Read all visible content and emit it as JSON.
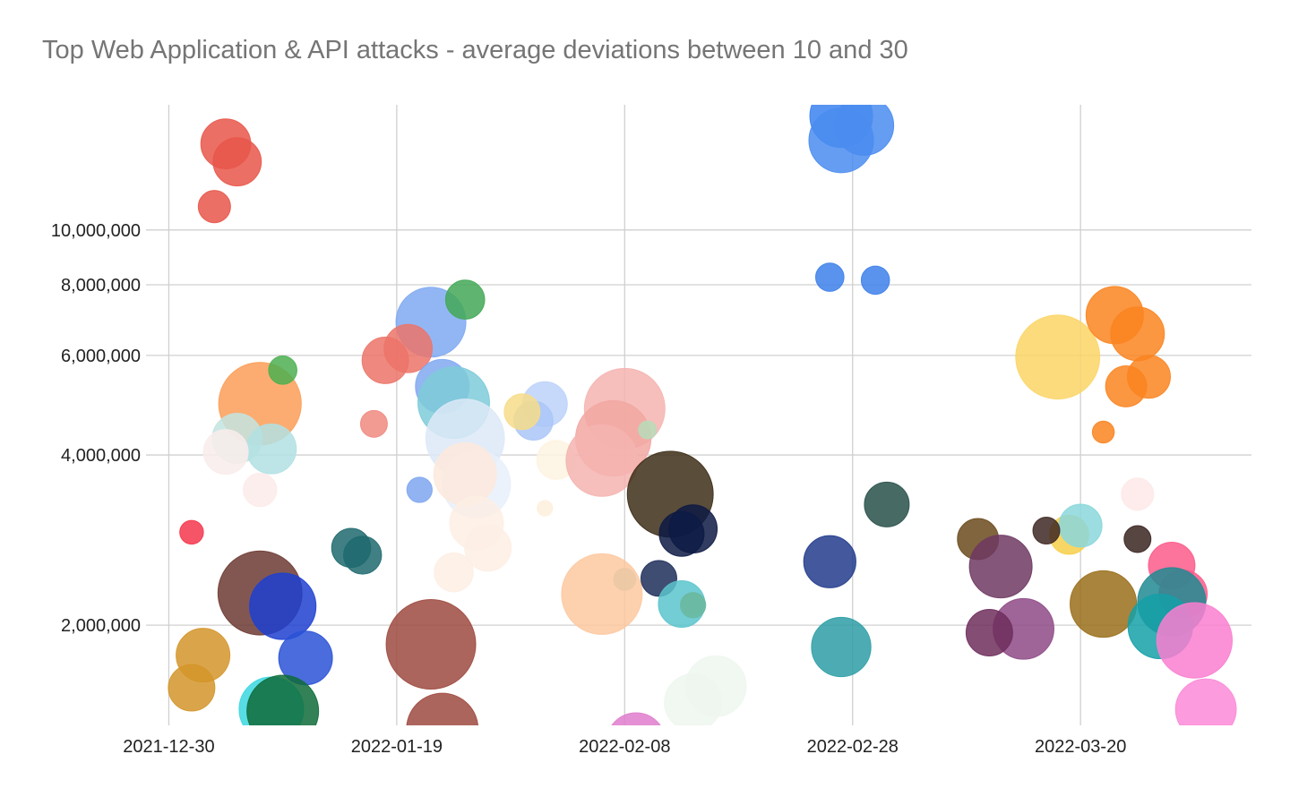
{
  "chart_data": {
    "type": "bubble",
    "title": "Top Web Application & API attacks - average deviations between 10 and 30",
    "xlabel": "",
    "ylabel": "",
    "x_scale": "date",
    "y_scale": "log",
    "xlim": [
      "2021-12-28",
      "2022-04-04"
    ],
    "ylim": [
      1330000,
      16650000
    ],
    "grid": true,
    "legend": "none",
    "x_ticks": [
      "2021-12-30",
      "2022-01-19",
      "2022-02-08",
      "2022-02-28",
      "2022-03-20"
    ],
    "y_ticks": [
      {
        "value": 2000000,
        "label": "2,000,000"
      },
      {
        "value": 4000000,
        "label": "4,000,000"
      },
      {
        "value": 6000000,
        "label": "6,000,000"
      },
      {
        "value": 8000000,
        "label": "8,000,000"
      },
      {
        "value": 10000000,
        "label": "10,000,000"
      }
    ],
    "points": [
      {
        "date": "2022-01-04",
        "value": 14200000,
        "size": 31,
        "color": "#e8564a"
      },
      {
        "date": "2022-01-05",
        "value": 13200000,
        "size": 29,
        "color": "#e8564a"
      },
      {
        "date": "2022-01-03",
        "value": 11000000,
        "size": 13,
        "color": "#e8564a"
      },
      {
        "date": "2022-01-07",
        "value": 4930000,
        "size": 85,
        "color": "#fb9e58"
      },
      {
        "date": "2022-01-09",
        "value": 5650000,
        "size": 10,
        "color": "#4caf50"
      },
      {
        "date": "2022-01-05",
        "value": 4280000,
        "size": 31,
        "color": "#c3e4e0"
      },
      {
        "date": "2022-01-08",
        "value": 4100000,
        "size": 31,
        "color": "#b2e0e3"
      },
      {
        "date": "2022-01-04",
        "value": 4050000,
        "size": 25,
        "color": "#f8eceb"
      },
      {
        "date": "2022-01-07",
        "value": 3470000,
        "size": 14,
        "color": "#fcebea"
      },
      {
        "date": "2022-01-01",
        "value": 2920000,
        "size": 7,
        "color": "#f4364c"
      },
      {
        "date": "2022-01-07",
        "value": 2280000,
        "size": 88,
        "color": "#6d3a33"
      },
      {
        "date": "2022-01-09",
        "value": 2160000,
        "size": 55,
        "color": "#1e40d0"
      },
      {
        "date": "2022-01-11",
        "value": 1750000,
        "size": 36,
        "color": "#2a52d6"
      },
      {
        "date": "2022-01-02",
        "value": 1770000,
        "size": 36,
        "color": "#d4952a"
      },
      {
        "date": "2022-01-01",
        "value": 1550000,
        "size": 27,
        "color": "#d4952a"
      },
      {
        "date": "2022-01-08",
        "value": 1420000,
        "size": 52,
        "color": "#3bd7e0"
      },
      {
        "date": "2022-01-09",
        "value": 1410000,
        "size": 64,
        "color": "#0f6b3a"
      },
      {
        "date": "2022-01-15",
        "value": 2740000,
        "size": 19,
        "color": "#1f6a6e"
      },
      {
        "date": "2022-01-16",
        "value": 2660000,
        "size": 18,
        "color": "#1f6a6e"
      },
      {
        "date": "2022-01-17",
        "value": 4540000,
        "size": 9,
        "color": "#ee8a80"
      },
      {
        "date": "2022-01-22",
        "value": 6870000,
        "size": 61,
        "color": "#7fa9f2"
      },
      {
        "date": "2022-01-25",
        "value": 7530000,
        "size": 19,
        "color": "#43a856"
      },
      {
        "date": "2022-01-18",
        "value": 5880000,
        "size": 27,
        "color": "#ec7468"
      },
      {
        "date": "2022-01-20",
        "value": 6170000,
        "size": 29,
        "color": "#ec7468"
      },
      {
        "date": "2022-01-23",
        "value": 5290000,
        "size": 36,
        "color": "#80a8f0"
      },
      {
        "date": "2022-01-24",
        "value": 4950000,
        "size": 64,
        "color": "#7ecbd9"
      },
      {
        "date": "2022-01-25",
        "value": 4280000,
        "size": 77,
        "color": "#dde9f7"
      },
      {
        "date": "2022-01-26",
        "value": 3550000,
        "size": 58,
        "color": "#e8f0fb"
      },
      {
        "date": "2022-01-25",
        "value": 3700000,
        "size": 49,
        "color": "#fde9dc"
      },
      {
        "date": "2022-01-26",
        "value": 3030000,
        "size": 36,
        "color": "#fdeee4"
      },
      {
        "date": "2022-01-27",
        "value": 2740000,
        "size": 27,
        "color": "#fdeee4"
      },
      {
        "date": "2022-01-24",
        "value": 2480000,
        "size": 19,
        "color": "#fdeee4"
      },
      {
        "date": "2022-01-21",
        "value": 3470000,
        "size": 8,
        "color": "#7fa6f0"
      },
      {
        "date": "2022-01-22",
        "value": 1850000,
        "size": 100,
        "color": "#9e4a40"
      },
      {
        "date": "2022-01-23",
        "value": 1310000,
        "size": 64,
        "color": "#9e4a40"
      },
      {
        "date": "2022-02-01",
        "value": 4920000,
        "size": 25,
        "color": "#bcd2fa"
      },
      {
        "date": "2022-01-31",
        "value": 4600000,
        "size": 19,
        "color": "#aac6f7"
      },
      {
        "date": "2022-01-30",
        "value": 4770000,
        "size": 16,
        "color": "#f6dc8a"
      },
      {
        "date": "2022-02-02",
        "value": 3920000,
        "size": 19,
        "color": "#fdf3e0"
      },
      {
        "date": "2022-02-01",
        "value": 3220000,
        "size": 3,
        "color": "#fdf0dc"
      },
      {
        "date": "2022-02-08",
        "value": 4830000,
        "size": 81,
        "color": "#f4b4b0"
      },
      {
        "date": "2022-02-07",
        "value": 4280000,
        "size": 71,
        "color": "#f2a7a2"
      },
      {
        "date": "2022-02-06",
        "value": 3910000,
        "size": 64,
        "color": "#f4b4b0"
      },
      {
        "date": "2022-02-10",
        "value": 4430000,
        "size": 4,
        "color": "#b7dcb9"
      },
      {
        "date": "2022-02-06",
        "value": 2270000,
        "size": 81,
        "color": "#fdc8a0"
      },
      {
        "date": "2022-02-08",
        "value": 2410000,
        "size": 6,
        "color": "#ebc8a5"
      },
      {
        "date": "2022-02-12",
        "value": 3410000,
        "size": 92,
        "color": "#3d2e18"
      },
      {
        "date": "2022-02-14",
        "value": 2960000,
        "size": 29,
        "color": "#0d1a44"
      },
      {
        "date": "2022-02-13",
        "value": 2900000,
        "size": 25,
        "color": "#0d1a44"
      },
      {
        "date": "2022-02-11",
        "value": 2420000,
        "size": 16,
        "color": "#1f2e5a"
      },
      {
        "date": "2022-02-14",
        "value": 2180000,
        "size": 6,
        "color": "#f1c232"
      },
      {
        "date": "2022-02-13",
        "value": 2180000,
        "size": 27,
        "color": "#5ac4cc"
      },
      {
        "date": "2022-02-14",
        "value": 2170000,
        "size": 8,
        "color": "#6ab8a0"
      },
      {
        "date": "2022-02-09",
        "value": 1240000,
        "size": 44,
        "color": "#e07ccd"
      },
      {
        "date": "2022-02-16",
        "value": 1560000,
        "size": 46,
        "color": "#eef6ef"
      },
      {
        "date": "2022-02-14",
        "value": 1460000,
        "size": 41,
        "color": "#eef6ef"
      },
      {
        "date": "2022-02-27",
        "value": 15900000,
        "size": 49,
        "color": "#3b82f0"
      },
      {
        "date": "2022-03-01",
        "value": 15300000,
        "size": 44,
        "color": "#4a8cf0"
      },
      {
        "date": "2022-02-27",
        "value": 14400000,
        "size": 52,
        "color": "#4a8cf0"
      },
      {
        "date": "2022-02-26",
        "value": 8250000,
        "size": 10,
        "color": "#3d80ea"
      },
      {
        "date": "2022-03-02",
        "value": 8150000,
        "size": 10,
        "color": "#3d80ea"
      },
      {
        "date": "2022-03-03",
        "value": 3270000,
        "size": 25,
        "color": "#28504a"
      },
      {
        "date": "2022-02-26",
        "value": 2590000,
        "size": 34,
        "color": "#223b8c"
      },
      {
        "date": "2022-02-27",
        "value": 1830000,
        "size": 44,
        "color": "#2e9ea6"
      },
      {
        "date": "2022-03-11",
        "value": 2840000,
        "size": 21,
        "color": "#6a4a1c"
      },
      {
        "date": "2022-03-13",
        "value": 2540000,
        "size": 49,
        "color": "#6e3862"
      },
      {
        "date": "2022-03-15",
        "value": 1970000,
        "size": 46,
        "color": "#8e4a86"
      },
      {
        "date": "2022-03-12",
        "value": 1940000,
        "size": 27,
        "color": "#6e2e5c"
      },
      {
        "date": "2022-03-18",
        "value": 5960000,
        "size": 88,
        "color": "#fbd566"
      },
      {
        "date": "2022-03-23",
        "value": 7070000,
        "size": 41,
        "color": "#fa8420"
      },
      {
        "date": "2022-03-25",
        "value": 6550000,
        "size": 36,
        "color": "#fa8420"
      },
      {
        "date": "2022-03-24",
        "value": 5290000,
        "size": 21,
        "color": "#fa8420"
      },
      {
        "date": "2022-03-26",
        "value": 5500000,
        "size": 23,
        "color": "#fa8420"
      },
      {
        "date": "2022-03-22",
        "value": 4390000,
        "size": 6,
        "color": "#fa8420"
      },
      {
        "date": "2022-03-25",
        "value": 3410000,
        "size": 13,
        "color": "#fde9e7"
      },
      {
        "date": "2022-03-25",
        "value": 2840000,
        "size": 9,
        "color": "#3a2520"
      },
      {
        "date": "2022-03-19",
        "value": 2890000,
        "size": 19,
        "color": "#f7cf4a"
      },
      {
        "date": "2022-03-20",
        "value": 3000000,
        "size": 23,
        "color": "#8ad7dc"
      },
      {
        "date": "2022-03-17",
        "value": 2940000,
        "size": 9,
        "color": "#3e2722"
      },
      {
        "date": "2022-03-22",
        "value": 2180000,
        "size": 55,
        "color": "#9a6e1a"
      },
      {
        "date": "2022-03-28",
        "value": 2550000,
        "size": 27,
        "color": "#fb5a8a"
      },
      {
        "date": "2022-03-29",
        "value": 2270000,
        "size": 29,
        "color": "#fb5a8a"
      },
      {
        "date": "2022-03-28",
        "value": 2200000,
        "size": 58,
        "color": "#1f8a92"
      },
      {
        "date": "2022-03-27",
        "value": 1990000,
        "size": 52,
        "color": "#15a0a8"
      },
      {
        "date": "2022-03-30",
        "value": 1880000,
        "size": 71,
        "color": "#fa7ed0"
      },
      {
        "date": "2022-03-31",
        "value": 1420000,
        "size": 46,
        "color": "#fb8ad8"
      }
    ]
  }
}
